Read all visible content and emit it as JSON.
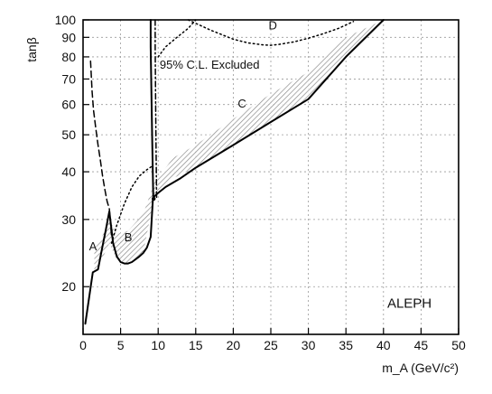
{
  "chart_data": {
    "type": "line",
    "title": "",
    "xlabel": "m_A (GeV/c²)",
    "ylabel": "tanβ",
    "xlim": [
      0,
      50
    ],
    "ylim": [
      15,
      100
    ],
    "yscale": "log",
    "grid": true,
    "x_ticks": [
      0,
      5,
      10,
      15,
      20,
      25,
      30,
      35,
      40,
      45,
      50
    ],
    "x_tick_labels": [
      "0",
      "5",
      "10",
      "15",
      "20",
      "25",
      "30",
      "35",
      "40",
      "45",
      "50"
    ],
    "y_ticks": [
      20,
      30,
      40,
      50,
      60,
      70,
      80,
      90,
      100
    ],
    "y_tick_labels": [
      "20",
      "30",
      "40",
      "50",
      "60",
      "70",
      "80",
      "90",
      "100"
    ],
    "annotations": {
      "excluded": "95% C.L. Excluded",
      "experiment": "ALEPH",
      "region_a": "A",
      "region_b": "B",
      "region_c": "C",
      "region_d": "D"
    },
    "series": [
      {
        "style": "solid",
        "x": [
          0.3,
          1.3,
          2.0,
          2.5,
          3.0,
          3.5,
          4.0,
          4.5,
          5.0,
          5.5,
          6.0,
          6.5,
          7.0,
          7.5,
          8.0,
          8.5,
          9.0,
          9.3,
          9.5,
          10.0,
          11.0,
          13.0,
          15.0,
          20.0,
          25.0,
          30.0,
          35.0,
          40.0
        ],
        "y": [
          16.0,
          21.8,
          22.2,
          25.0,
          28.0,
          31.5,
          26.0,
          24.0,
          23.2,
          23.0,
          23.0,
          23.2,
          23.6,
          24.0,
          24.5,
          25.3,
          27.0,
          34.0,
          34.5,
          35.2,
          36.5,
          38.5,
          41.0,
          47.0,
          54.0,
          62.0,
          80.0,
          100.0
        ]
      },
      {
        "style": "dashed",
        "x": [
          1.0,
          1.2,
          1.4,
          1.7,
          2.0,
          2.3,
          2.6,
          2.9,
          3.2,
          3.5,
          3.8
        ],
        "y": [
          78.0,
          65.0,
          58.0,
          52.0,
          47.0,
          43.0,
          39.0,
          36.0,
          33.5,
          32.0,
          27.0
        ]
      },
      {
        "style": "dotted",
        "x": [
          3.8,
          4.5,
          5.5,
          6.5,
          7.5,
          8.5,
          9.3
        ],
        "y": [
          26.0,
          29.0,
          33.0,
          36.5,
          39.0,
          40.5,
          41.5
        ]
      },
      {
        "style": "solid",
        "x": [
          9.0,
          9.0,
          9.2,
          9.35
        ],
        "y": [
          100.0,
          85.0,
          50.0,
          34.0
        ]
      },
      {
        "style": "dash-dot",
        "x": [
          9.6,
          9.6,
          9.7,
          9.8
        ],
        "y": [
          100.0,
          85.0,
          50.0,
          34.0
        ]
      },
      {
        "style": "dotted",
        "x": [
          10.0,
          11.0,
          12.5,
          14.0,
          15.0
        ],
        "y": [
          80.0,
          85.0,
          90.0,
          95.0,
          100.0
        ]
      },
      {
        "style": "dotted",
        "x": [
          14.0,
          17.0,
          20.0,
          22.0,
          24.0,
          25.0,
          26.0,
          28.0,
          30.0,
          32.0,
          34.0,
          36.0
        ],
        "y": [
          100.0,
          94.0,
          89.0,
          87.0,
          86.0,
          85.8,
          86.2,
          87.5,
          89.5,
          92.0,
          95.0,
          99.0
        ]
      }
    ],
    "band": {
      "style": "hatched",
      "x": [
        1.5,
        2.5,
        3.5,
        4.5,
        6.0,
        8.0,
        9.5,
        12.0,
        15.0,
        20.0,
        25.0,
        30.0,
        35.0,
        40.0
      ],
      "lower": [
        22.0,
        23.5,
        26.0,
        23.5,
        23.0,
        24.5,
        34.5,
        38.5,
        41.0,
        47.0,
        54.0,
        62.0,
        80.0,
        100.0
      ],
      "upper": [
        25.0,
        27.0,
        30.0,
        27.5,
        28.0,
        31.0,
        37.5,
        43.5,
        47.0,
        55.0,
        64.0,
        73.0,
        90.0,
        100.0
      ]
    }
  }
}
